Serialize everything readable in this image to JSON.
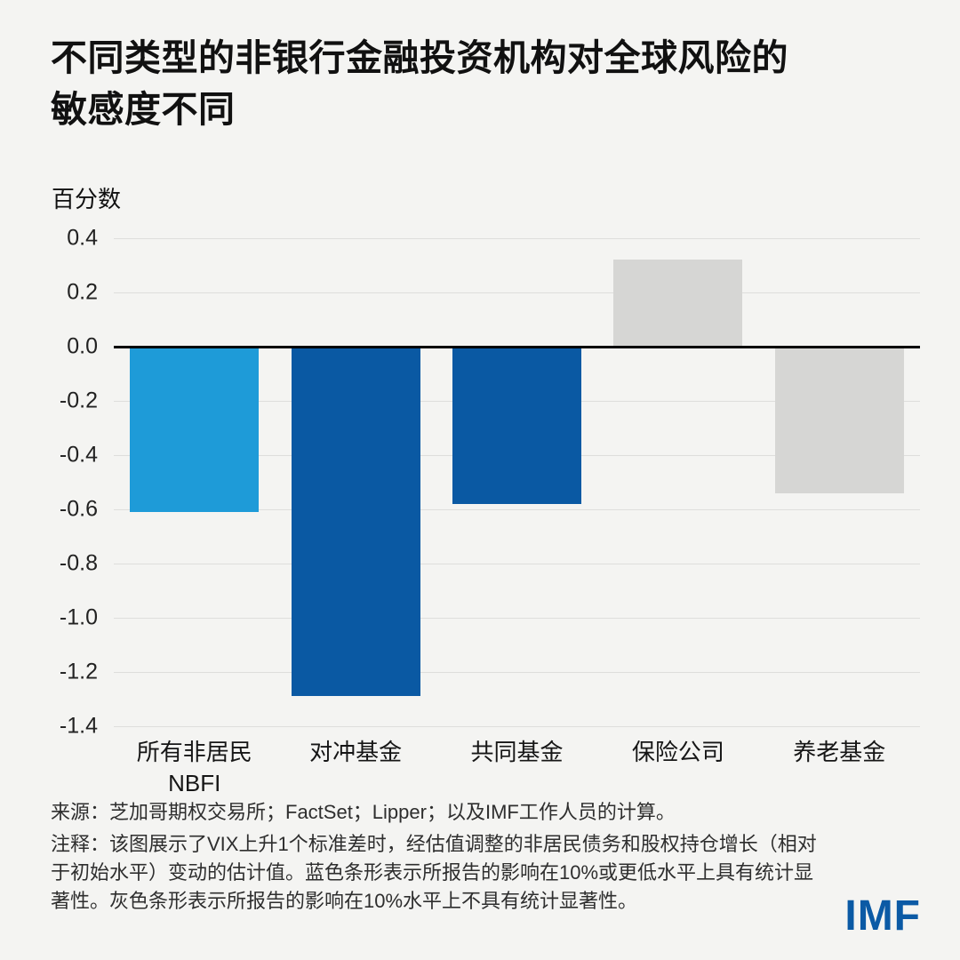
{
  "header": {
    "title": "不同类型的非银行金融投资机构对全球风险的\n敏感度不同"
  },
  "chart_data": {
    "type": "bar",
    "title": "不同类型的非银行金融投资机构对全球风险的敏感度不同",
    "ylabel": "百分数",
    "xlabel": "",
    "ylim": [
      -1.4,
      0.4
    ],
    "ytick_step": 0.2,
    "yticks": [
      "0.4",
      "0.2",
      "0.0",
      "-0.2",
      "-0.4",
      "-0.6",
      "-0.8",
      "-1.0",
      "-1.2",
      "-1.4"
    ],
    "categories": [
      "所有非居民\nNBFI",
      "对冲基金",
      "共同基金",
      "保险公司",
      "养老基金"
    ],
    "values": [
      -0.61,
      -1.29,
      -0.58,
      0.32,
      -0.54
    ],
    "bar_colors": [
      "#1e9bd8",
      "#0a59a3",
      "#0a59a3",
      "#d6d6d4",
      "#d6d6d4"
    ],
    "grid": true,
    "legend_position": "none",
    "significance_note": "蓝色条形 = 统计显著（10%或更低水平）；灰色条形 = 不具有统计显著性（10%水平）"
  },
  "footer": {
    "source": "来源：芝加哥期权交易所；FactSet；Lipper；以及IMF工作人员的计算。",
    "note": "注释：该图展示了VIX上升1个标准差时，经估值调整的非居民债务和股权持仓增长（相对于初始水平）变动的估计值。蓝色条形表示所报告的影响在10%或更低水平上具有统计显著性。灰色条形表示所报告的影响在10%水平上不具有统计显著性。",
    "logo": "IMF"
  },
  "colors": {
    "background": "#f4f4f2",
    "light_blue": "#1e9bd8",
    "dark_blue": "#0a59a3",
    "gray_bar": "#d6d6d4",
    "zero_line": "#000000",
    "gridline": "#dededc",
    "logo_blue": "#0b5aa5"
  }
}
